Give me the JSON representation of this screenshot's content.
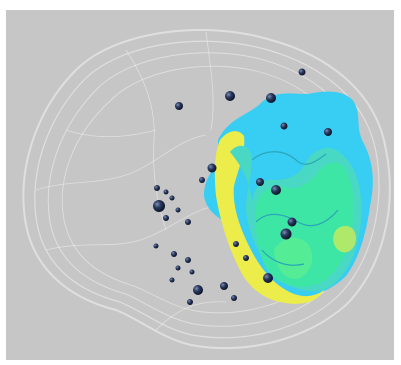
{
  "scene": {
    "description_free": true,
    "colors": {
      "background": "#c6c6c6",
      "frame": "#ffffff",
      "mesh": "#f2f2f2",
      "cyan_region": "#38cdf3",
      "green_region": "#3ee6a6",
      "teal_region": "#48d8c4",
      "yellow_region": "#ecec4a",
      "sphere": "#1b2a4a"
    }
  }
}
